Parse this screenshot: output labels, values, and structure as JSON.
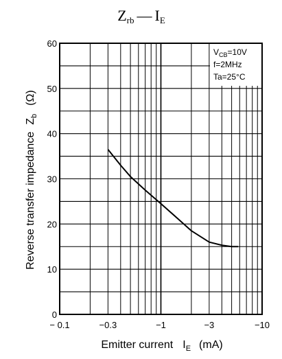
{
  "chart_data": {
    "type": "line",
    "title": {
      "z": "Z",
      "z_sub": "rb",
      "dash": "—",
      "i": "I",
      "i_sub": "E"
    },
    "ylabel": {
      "text": "Reverse transfer impedance",
      "sym": "Z",
      "sym_sub": "b",
      "unit": "(Ω)"
    },
    "xlabel": {
      "text": "Emitter current",
      "sym": "I",
      "sym_sub": "E",
      "unit": "(mA)"
    },
    "x_scale": "log",
    "x_reversed_negative": true,
    "xlim": [
      -0.1,
      -10
    ],
    "ylim": [
      0,
      60
    ],
    "x_ticks": [
      {
        "value": -0.1,
        "label": "− 0.1"
      },
      {
        "value": -0.3,
        "label": "−0.3"
      },
      {
        "value": -1,
        "label": "−1"
      },
      {
        "value": -3,
        "label": "−3"
      },
      {
        "value": -10,
        "label": "−10"
      }
    ],
    "y_ticks": [
      0,
      10,
      20,
      30,
      40,
      50,
      60
    ],
    "grid": true,
    "conditions": {
      "line1": {
        "main": "V",
        "sub": "CB",
        "rest": "=10V"
      },
      "line2": "f=2MHz",
      "line3": "Ta=25°C"
    },
    "conditions_position": "top-right",
    "series": [
      {
        "x": [
          -0.3,
          -0.4,
          -0.5,
          -0.7,
          -1.0,
          -1.5,
          -2.0,
          -3.0,
          -4.0,
          -5.0,
          -5.8
        ],
        "values": [
          36.5,
          33.0,
          30.5,
          27.5,
          24.5,
          21.0,
          18.5,
          16.0,
          15.3,
          15.0,
          15.0
        ]
      }
    ]
  }
}
